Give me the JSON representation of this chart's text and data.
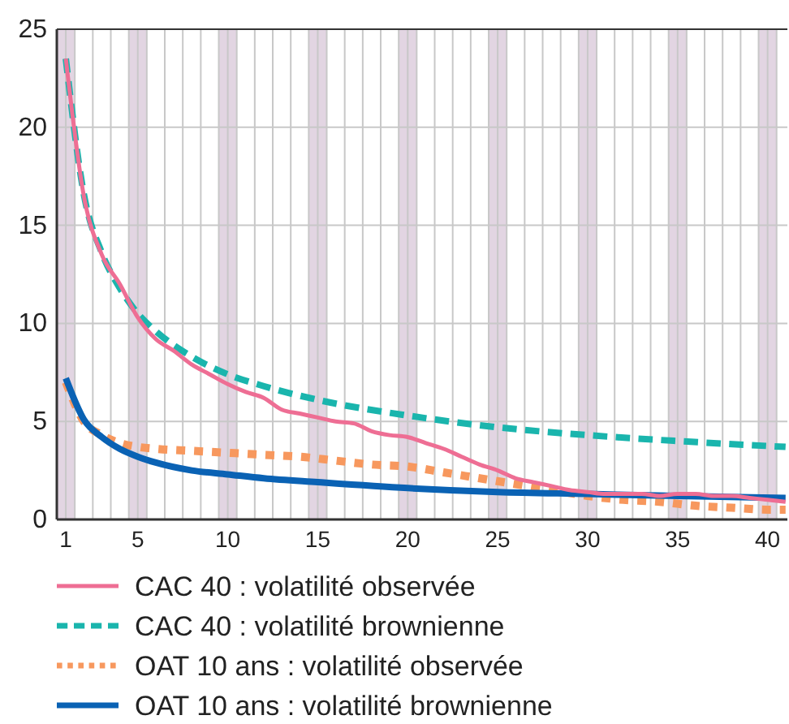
{
  "chart_data": {
    "type": "line",
    "xlim": [
      0.5,
      41.1
    ],
    "ylim": [
      0,
      25
    ],
    "yticks": [
      0,
      5,
      10,
      15,
      20,
      25
    ],
    "xticks": [
      1,
      {
        "value": 1.5,
        "label": null
      },
      {
        "value": 2.5,
        "label": null
      },
      {
        "value": 3.5,
        "label": null
      },
      {
        "value": 4.5,
        "label": null
      },
      5,
      {
        "value": 5.5,
        "label": null
      },
      {
        "value": 6.5,
        "label": null
      },
      {
        "value": 7.5,
        "label": null
      },
      {
        "value": 8.5,
        "label": null
      },
      {
        "value": 9.5,
        "label": null
      },
      10,
      {
        "value": 10.5,
        "label": null
      },
      {
        "value": 11.5,
        "label": null
      },
      {
        "value": 12.5,
        "label": null
      },
      {
        "value": 13.5,
        "label": null
      },
      {
        "value": 14.5,
        "label": null
      },
      15,
      {
        "value": 15.5,
        "label": null
      },
      {
        "value": 16.5,
        "label": null
      },
      {
        "value": 17.5,
        "label": null
      },
      {
        "value": 18.5,
        "label": null
      },
      {
        "value": 19.5,
        "label": null
      },
      20,
      {
        "value": 20.5,
        "label": null
      },
      {
        "value": 21.5,
        "label": null
      },
      {
        "value": 22.5,
        "label": null
      },
      {
        "value": 23.5,
        "label": null
      },
      {
        "value": 24.5,
        "label": null
      },
      25,
      {
        "value": 25.5,
        "label": null
      },
      {
        "value": 26.5,
        "label": null
      },
      {
        "value": 27.5,
        "label": null
      },
      {
        "value": 28.5,
        "label": null
      },
      {
        "value": 29.5,
        "label": null
      },
      30,
      {
        "value": 30.5,
        "label": null
      },
      {
        "value": 31.5,
        "label": null
      },
      {
        "value": 32.5,
        "label": null
      },
      {
        "value": 33.5,
        "label": null
      },
      {
        "value": 34.5,
        "label": null
      },
      35,
      {
        "value": 35.5,
        "label": null
      },
      {
        "value": 36.5,
        "label": null
      },
      {
        "value": 37.5,
        "label": null
      },
      {
        "value": 38.5,
        "label": null
      },
      {
        "value": 39.5,
        "label": null
      },
      40,
      {
        "value": 40.5,
        "label": null
      }
    ],
    "grid": true,
    "legend": "bottom",
    "bands": [
      {
        "axis": "x",
        "from": 0.5,
        "to": 1.5,
        "color": "#e2d5e2"
      },
      {
        "axis": "x",
        "from": 4.5,
        "to": 5.5,
        "color": "#e2d5e2"
      },
      {
        "axis": "x",
        "from": 9.5,
        "to": 10.5,
        "color": "#e2d5e2"
      },
      {
        "axis": "x",
        "from": 14.5,
        "to": 15.5,
        "color": "#e2d5e2"
      },
      {
        "axis": "x",
        "from": 19.5,
        "to": 20.5,
        "color": "#e2d5e2"
      },
      {
        "axis": "x",
        "from": 24.5,
        "to": 25.5,
        "color": "#e2d5e2"
      },
      {
        "axis": "x",
        "from": 29.5,
        "to": 30.5,
        "color": "#e2d5e2"
      },
      {
        "axis": "x",
        "from": 34.5,
        "to": 35.5,
        "color": "#e2d5e2"
      },
      {
        "axis": "x",
        "from": 39.5,
        "to": 40.5,
        "color": "#e2d5e2"
      }
    ],
    "series": [
      {
        "name": "CAC 40 : volatilité observée",
        "color": "#ee6e94",
        "line_style": "solid",
        "x": [
          1,
          2,
          3,
          4,
          5,
          6,
          7,
          8,
          9,
          10,
          11,
          12,
          13,
          14,
          15,
          16,
          17,
          18,
          19,
          20,
          21,
          22,
          23,
          24,
          25,
          26,
          27,
          28,
          29,
          30,
          31,
          32,
          33,
          34,
          35,
          36,
          37,
          38,
          39,
          40,
          41
        ],
        "values": [
          23.5,
          16.5,
          13.5,
          12.0,
          10.3,
          9.2,
          8.6,
          7.9,
          7.4,
          6.9,
          6.5,
          6.2,
          5.6,
          5.4,
          5.2,
          5.0,
          4.9,
          4.5,
          4.3,
          4.2,
          3.9,
          3.6,
          3.2,
          2.8,
          2.5,
          2.1,
          1.9,
          1.7,
          1.5,
          1.4,
          1.3,
          1.3,
          1.3,
          1.2,
          1.3,
          1.3,
          1.2,
          1.2,
          1.1,
          1.0,
          0.9
        ]
      },
      {
        "name": "CAC 40 : volatilité brownienne",
        "color": "#1ab5ad",
        "line_style": "dashed",
        "x": [
          1,
          2,
          3,
          4,
          5,
          6,
          8,
          10,
          12,
          15,
          20,
          25,
          30,
          35,
          41
        ],
        "values": [
          23.5,
          16.6,
          13.6,
          11.8,
          10.5,
          9.6,
          8.3,
          7.4,
          6.8,
          6.1,
          5.3,
          4.7,
          4.3,
          4.0,
          3.7
        ]
      },
      {
        "name": "OAT 10 ans : volatilité observée",
        "color": "#f7985e",
        "line_style": "dotted",
        "x": [
          1,
          2,
          3,
          4,
          5,
          6,
          8,
          10,
          12,
          14,
          16,
          18,
          20,
          22,
          24,
          26,
          28,
          30,
          32,
          34,
          36,
          38,
          40,
          41
        ],
        "values": [
          7.0,
          5.0,
          4.3,
          3.9,
          3.7,
          3.6,
          3.5,
          3.4,
          3.3,
          3.2,
          3.0,
          2.8,
          2.7,
          2.4,
          2.1,
          1.8,
          1.5,
          1.2,
          1.0,
          0.9,
          0.7,
          0.6,
          0.5,
          0.5
        ]
      },
      {
        "name": "OAT 10 ans : volatilité brownienne",
        "color": "#0a62b4",
        "line_style": "solid",
        "x": [
          1,
          2,
          3,
          4,
          5,
          6,
          8,
          10,
          12,
          15,
          20,
          25,
          30,
          35,
          41
        ],
        "values": [
          7.2,
          5.1,
          4.2,
          3.6,
          3.2,
          2.9,
          2.5,
          2.3,
          2.1,
          1.9,
          1.6,
          1.4,
          1.3,
          1.2,
          1.1
        ]
      }
    ]
  }
}
